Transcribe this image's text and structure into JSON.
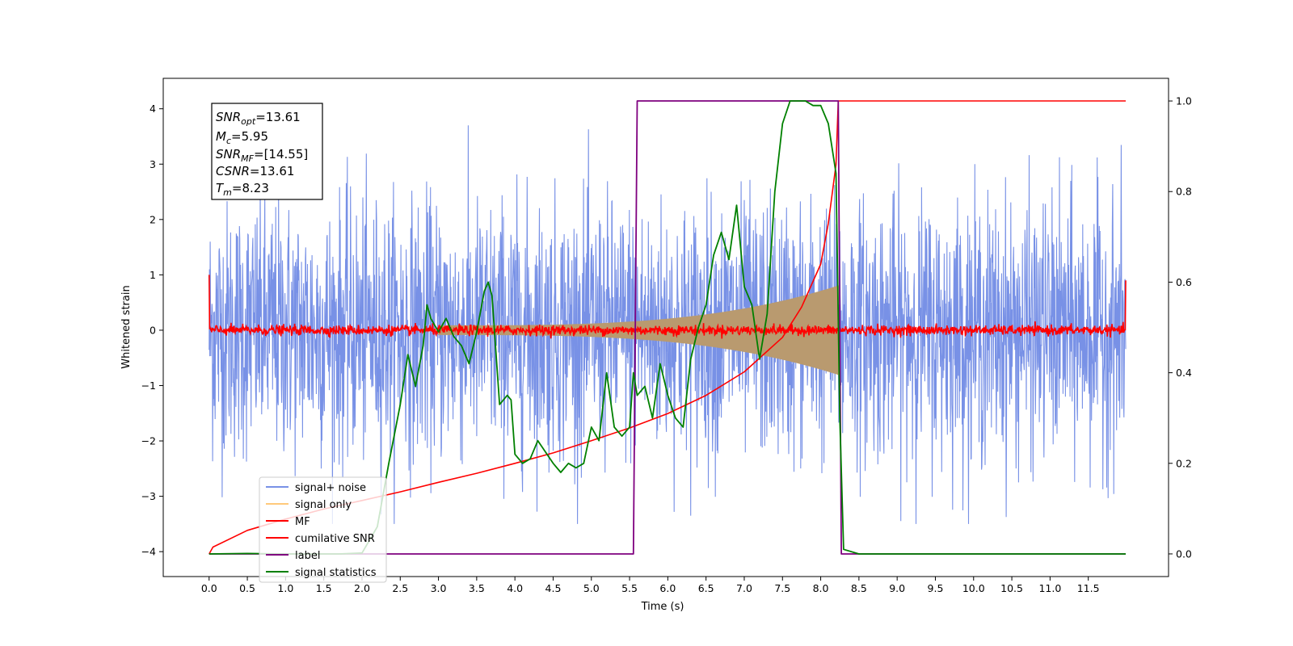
{
  "chart_data": {
    "type": "line",
    "xlabel": "Time (s)",
    "ylabel": "Whitened strain",
    "xlim": [
      -0.6,
      12.55
    ],
    "ylim": [
      -4.45,
      4.55
    ],
    "y2lim": [
      -0.05,
      1.05
    ],
    "xticks": [
      0.0,
      0.5,
      1.0,
      1.5,
      2.0,
      2.5,
      3.0,
      3.5,
      4.0,
      4.5,
      5.0,
      5.5,
      6.0,
      6.5,
      7.0,
      7.5,
      8.0,
      8.5,
      9.0,
      9.5,
      10.0,
      10.5,
      11.0,
      11.5
    ],
    "xtick_labels": [
      "0.0",
      "0.5",
      "1.0",
      "1.5",
      "2.0",
      "2.5",
      "3.0",
      "3.5",
      "4.0",
      "4.5",
      "5.0",
      "5.5",
      "6.0",
      "6.5",
      "7.0",
      "7.5",
      "8.0",
      "8.5",
      "9.0",
      "9.5",
      "10.0",
      "10.5",
      "11.0",
      "11.5"
    ],
    "yticks": [
      4,
      3,
      2,
      1,
      0,
      -1,
      -2,
      -3,
      -4
    ],
    "ytick_labels": [
      "4",
      "3",
      "2",
      "1",
      "0",
      "−1",
      "−2",
      "−3",
      "−4"
    ],
    "y2ticks": [
      1.0,
      0.8,
      0.6,
      0.4,
      0.2,
      0.0
    ],
    "y2tick_labels": [
      "1.0",
      "0.8",
      "0.6",
      "0.4",
      "0.2",
      "0.0"
    ],
    "grid": false,
    "legend_placement": "lower-left",
    "colors": {
      "signal_noise": "#7891e6",
      "signal_only": "#b99a6f",
      "signal_only_legend": "#ffc97a",
      "mf": "#ff0000",
      "csnr": "#ff0000",
      "label": "#7f007f",
      "stats": "#008000"
    },
    "annotation": [
      {
        "base": "SNR",
        "sub": "opt",
        "value": "=13.61"
      },
      {
        "base": "M",
        "sub": "c",
        "value": "=5.95"
      },
      {
        "base": "SNR",
        "sub": "MF",
        "value": "=[14.55]"
      },
      {
        "base": "CSNR",
        "sub": "",
        "value": "=13.61"
      },
      {
        "base": "T",
        "sub": "m",
        "value": "=8.23"
      }
    ],
    "series": [
      {
        "name": "signal+ noise",
        "axis": "left",
        "t_range": [
          0.0,
          11.99
        ],
        "envelope_approx": [
          -3.5,
          3.7
        ]
      },
      {
        "name": "signal only",
        "axis": "left",
        "chirp_start": 3.0,
        "chirp_end": 8.23,
        "amplitude_at_end": 0.8
      },
      {
        "name": "MF",
        "axis": "left",
        "t_range": [
          0.0,
          11.99
        ],
        "baseline": 0.0,
        "start_value": 1.0,
        "end_value": 0.9
      },
      {
        "name": "cumilative SNR",
        "axis": "right",
        "x": [
          0.0,
          0.05,
          0.5,
          1.0,
          1.5,
          2.0,
          2.5,
          3.0,
          3.5,
          4.0,
          4.5,
          5.0,
          5.5,
          6.0,
          6.5,
          7.0,
          7.5,
          7.75,
          8.0,
          8.1,
          8.2,
          8.23,
          8.3,
          11.99
        ],
        "y": [
          0.0,
          0.015,
          0.052,
          0.077,
          0.099,
          0.118,
          0.137,
          0.158,
          0.178,
          0.2,
          0.223,
          0.25,
          0.278,
          0.31,
          0.35,
          0.402,
          0.478,
          0.545,
          0.64,
          0.73,
          0.86,
          1.0,
          1.0,
          1.0
        ]
      },
      {
        "name": "label",
        "axis": "right",
        "x": [
          0.0,
          5.55,
          5.6,
          8.23,
          8.27,
          11.99
        ],
        "y": [
          0.0,
          0.0,
          1.0,
          1.0,
          0.0,
          0.0
        ]
      },
      {
        "name": "signal statistics",
        "axis": "right",
        "x": [
          0.0,
          0.5,
          1.0,
          1.5,
          1.7,
          2.0,
          2.2,
          2.35,
          2.5,
          2.6,
          2.7,
          2.8,
          2.85,
          2.9,
          3.0,
          3.1,
          3.2,
          3.3,
          3.4,
          3.5,
          3.6,
          3.65,
          3.7,
          3.8,
          3.9,
          3.95,
          4.0,
          4.1,
          4.2,
          4.3,
          4.5,
          4.6,
          4.7,
          4.8,
          4.9,
          5.0,
          5.1,
          5.2,
          5.3,
          5.4,
          5.5,
          5.55,
          5.6,
          5.7,
          5.8,
          5.9,
          6.0,
          6.1,
          6.2,
          6.3,
          6.4,
          6.5,
          6.6,
          6.7,
          6.8,
          6.9,
          7.0,
          7.1,
          7.2,
          7.3,
          7.4,
          7.5,
          7.6,
          7.7,
          7.8,
          7.9,
          8.0,
          8.1,
          8.2,
          8.25,
          8.3,
          8.5,
          9.0,
          10.0,
          11.0,
          11.99
        ],
        "y": [
          0.0,
          0.001,
          0.0,
          0.0,
          0.0,
          0.002,
          0.06,
          0.2,
          0.33,
          0.44,
          0.37,
          0.46,
          0.55,
          0.52,
          0.49,
          0.52,
          0.48,
          0.46,
          0.42,
          0.49,
          0.58,
          0.6,
          0.57,
          0.33,
          0.35,
          0.34,
          0.22,
          0.2,
          0.21,
          0.25,
          0.2,
          0.18,
          0.2,
          0.19,
          0.2,
          0.28,
          0.25,
          0.4,
          0.28,
          0.26,
          0.28,
          0.4,
          0.35,
          0.37,
          0.3,
          0.42,
          0.35,
          0.3,
          0.28,
          0.43,
          0.5,
          0.55,
          0.66,
          0.71,
          0.65,
          0.77,
          0.59,
          0.55,
          0.43,
          0.53,
          0.8,
          0.95,
          1.0,
          1.0,
          1.0,
          0.99,
          0.99,
          0.95,
          0.84,
          0.3,
          0.01,
          0.0,
          0.0,
          0.0,
          0.0,
          0.0
        ]
      }
    ]
  }
}
